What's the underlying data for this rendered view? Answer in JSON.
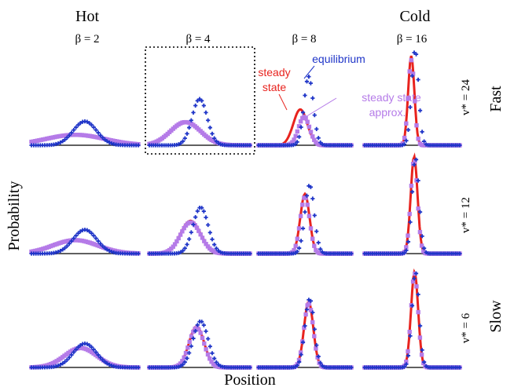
{
  "chart_data": {
    "type": "line",
    "column_headers": {
      "left": "Hot",
      "right": "Cold"
    },
    "column_betas": [
      "β = 2",
      "β = 4",
      "β = 8",
      "β = 16"
    ],
    "row_velocities": [
      "v* = 24",
      "v* = 12",
      "v* = 6"
    ],
    "row_speeds": {
      "top": "Fast",
      "bottom": "Slow"
    },
    "xlabel": "Position",
    "ylabel": "Probability",
    "annotations": {
      "steady_state": [
        "steady",
        "state"
      ],
      "equilibrium": "equilibrium",
      "approx": [
        "steady state",
        "approx."
      ]
    },
    "colors": {
      "equilibrium": "#1f35c8",
      "steady_state": "#e8231e",
      "approx": "#b57be8",
      "axis": "#000000",
      "box": "#000000"
    },
    "series_marks": {
      "equilibrium": "plus-markers",
      "steady_state": "line",
      "approx": "square-markers"
    },
    "highlighted_panel": {
      "row": 0,
      "col": 1
    },
    "x_range": [
      -1,
      1
    ],
    "panels": [
      [
        {
          "eq": {
            "mu": 0.0,
            "sigma": 0.22,
            "h": 0.32
          },
          "ss": {
            "mu": -0.18,
            "sigma": 0.55,
            "h": 0.14
          },
          "ap": {
            "mu": -0.18,
            "sigma": 0.55,
            "h": 0.14
          }
        },
        {
          "eq": {
            "mu": 0.0,
            "sigma": 0.15,
            "h": 0.62
          },
          "ss": {
            "mu": -0.28,
            "sigma": 0.28,
            "h": 0.32
          },
          "ap": {
            "mu": -0.28,
            "sigma": 0.3,
            "h": 0.31
          }
        },
        {
          "eq": {
            "mu": 0.08,
            "sigma": 0.1,
            "h": 0.92
          },
          "ss": {
            "mu": -0.1,
            "sigma": 0.15,
            "h": 0.48
          },
          "ap": {
            "mu": -0.02,
            "sigma": 0.12,
            "h": 0.38
          }
        },
        {
          "eq": {
            "mu": 0.06,
            "sigma": 0.075,
            "h": 1.28
          },
          "ss": {
            "mu": -0.02,
            "sigma": 0.065,
            "h": 1.2
          },
          "ap": {
            "mu": -0.02,
            "sigma": 0.065,
            "h": 1.14
          }
        }
      ],
      [
        {
          "eq": {
            "mu": 0.0,
            "sigma": 0.22,
            "h": 0.32
          },
          "ss": {
            "mu": -0.18,
            "sigma": 0.42,
            "h": 0.18
          },
          "ap": {
            "mu": -0.18,
            "sigma": 0.42,
            "h": 0.18
          }
        },
        {
          "eq": {
            "mu": 0.02,
            "sigma": 0.15,
            "h": 0.62
          },
          "ss": {
            "mu": -0.18,
            "sigma": 0.2,
            "h": 0.44
          },
          "ap": {
            "mu": -0.18,
            "sigma": 0.2,
            "h": 0.42
          }
        },
        {
          "eq": {
            "mu": 0.1,
            "sigma": 0.1,
            "h": 0.92
          },
          "ss": {
            "mu": 0.0,
            "sigma": 0.1,
            "h": 0.8
          },
          "ap": {
            "mu": 0.0,
            "sigma": 0.1,
            "h": 0.76
          }
        },
        {
          "eq": {
            "mu": 0.07,
            "sigma": 0.075,
            "h": 1.28
          },
          "ss": {
            "mu": 0.04,
            "sigma": 0.072,
            "h": 1.3
          },
          "ap": {
            "mu": 0.04,
            "sigma": 0.072,
            "h": 1.26
          }
        }
      ],
      [
        {
          "eq": {
            "mu": 0.0,
            "sigma": 0.22,
            "h": 0.32
          },
          "ss": {
            "mu": -0.08,
            "sigma": 0.3,
            "h": 0.26
          },
          "ap": {
            "mu": -0.08,
            "sigma": 0.3,
            "h": 0.26
          }
        },
        {
          "eq": {
            "mu": 0.02,
            "sigma": 0.15,
            "h": 0.62
          },
          "ss": {
            "mu": -0.06,
            "sigma": 0.15,
            "h": 0.55
          },
          "ap": {
            "mu": -0.06,
            "sigma": 0.15,
            "h": 0.53
          }
        },
        {
          "eq": {
            "mu": 0.1,
            "sigma": 0.1,
            "h": 0.92
          },
          "ss": {
            "mu": 0.08,
            "sigma": 0.1,
            "h": 0.88
          },
          "ap": {
            "mu": 0.08,
            "sigma": 0.1,
            "h": 0.86
          }
        },
        {
          "eq": {
            "mu": 0.07,
            "sigma": 0.075,
            "h": 1.28
          },
          "ss": {
            "mu": 0.05,
            "sigma": 0.075,
            "h": 1.28
          },
          "ap": {
            "mu": 0.05,
            "sigma": 0.075,
            "h": 1.26
          }
        }
      ]
    ]
  }
}
